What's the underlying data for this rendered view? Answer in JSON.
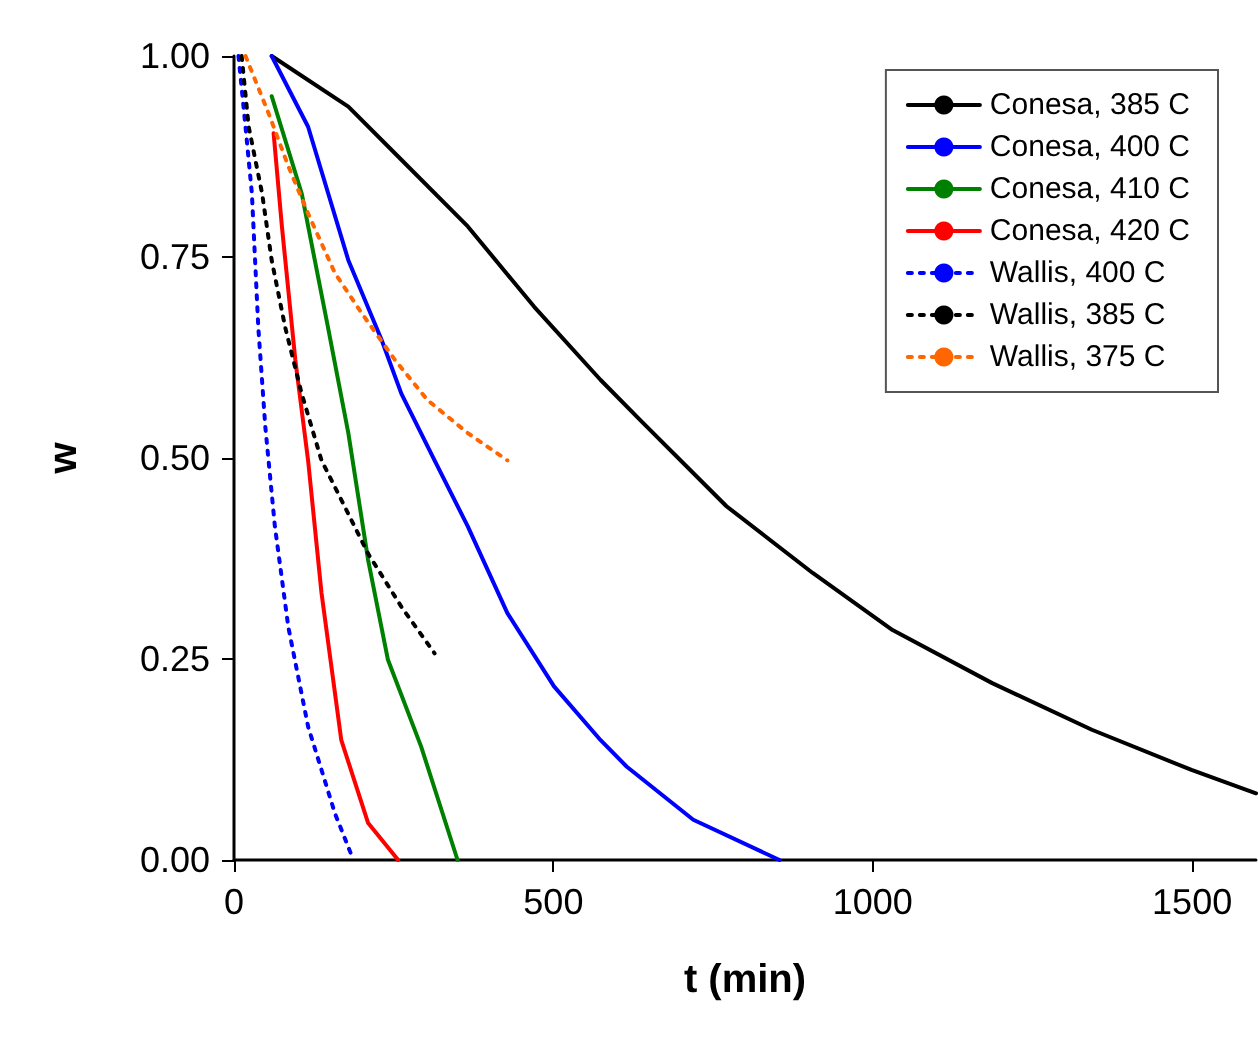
{
  "chart_data": {
    "type": "line",
    "xlabel": "t (min)",
    "ylabel": "w",
    "xlim": [
      0,
      1600
    ],
    "xticks": [
      0,
      500,
      1000,
      1500
    ],
    "ylim": [
      0,
      1
    ],
    "yticks": [
      {
        "value": 0,
        "label": "0.00"
      },
      {
        "value": 0.25,
        "label": "0.25"
      },
      {
        "value": 0.5,
        "label": "0.50"
      },
      {
        "value": 0.75,
        "label": "0.75"
      },
      {
        "value": 1,
        "label": "1.00"
      }
    ],
    "grid": false,
    "legend": "top right",
    "marker": "none",
    "series": [
      {
        "name": "Conesa, 385 C",
        "color": "#000000",
        "line_style": "solid",
        "x": [
          59,
          179,
          262,
          366,
          470,
          574,
          636,
          771,
          906,
          1031,
          1187,
          1343,
          1499,
          1600
        ],
        "values": [
          1.0,
          0.937,
          0.871,
          0.788,
          0.688,
          0.597,
          0.547,
          0.44,
          0.357,
          0.286,
          0.22,
          0.162,
          0.112,
          0.083
        ]
      },
      {
        "name": "Conesa, 400 C",
        "color": "#0000ff",
        "line_style": "solid",
        "x": [
          59,
          116,
          179,
          231,
          262,
          314,
          366,
          428,
          501,
          574,
          615,
          719,
          854
        ],
        "values": [
          1.0,
          0.912,
          0.746,
          0.647,
          0.58,
          0.497,
          0.415,
          0.307,
          0.216,
          0.149,
          0.116,
          0.05,
          0
        ]
      },
      {
        "name": "Conesa, 410 C",
        "color": "#008000",
        "line_style": "solid",
        "x": [
          59,
          106,
          147,
          179,
          210,
          241,
          293,
          350
        ],
        "values": [
          0.95,
          0.829,
          0.663,
          0.531,
          0.373,
          0.249,
          0.141,
          0
        ]
      },
      {
        "name": "Conesa, 420 C",
        "color": "#ff0000",
        "line_style": "solid",
        "x": [
          62,
          75,
          96,
          116,
          137,
          168,
          210,
          257
        ],
        "values": [
          0.904,
          0.788,
          0.622,
          0.497,
          0.332,
          0.149,
          0.046,
          0
        ]
      },
      {
        "name": "Wallis, 400 C",
        "color": "#0000ff",
        "line_style": "dotted",
        "x": [
          7,
          18,
          28,
          38,
          49,
          64,
          85,
          116,
          158,
          187
        ],
        "values": [
          1.0,
          0.912,
          0.829,
          0.663,
          0.539,
          0.415,
          0.29,
          0.166,
          0.058,
          0
        ]
      },
      {
        "name": "Wallis, 385 C",
        "color": "#000000",
        "line_style": "dotted",
        "x": [
          12,
          23,
          44,
          59,
          80,
          106,
          137,
          168,
          210,
          262,
          314
        ],
        "values": [
          1.0,
          0.912,
          0.829,
          0.746,
          0.663,
          0.58,
          0.497,
          0.448,
          0.381,
          0.315,
          0.257
        ]
      },
      {
        "name": "Wallis, 375 C",
        "color": "#ff6600",
        "line_style": "dotted",
        "x": [
          18,
          54,
          85,
          116,
          158,
          200,
          252,
          303,
          366,
          428
        ],
        "values": [
          1.0,
          0.929,
          0.863,
          0.804,
          0.73,
          0.68,
          0.622,
          0.572,
          0.531,
          0.497
        ]
      }
    ]
  }
}
